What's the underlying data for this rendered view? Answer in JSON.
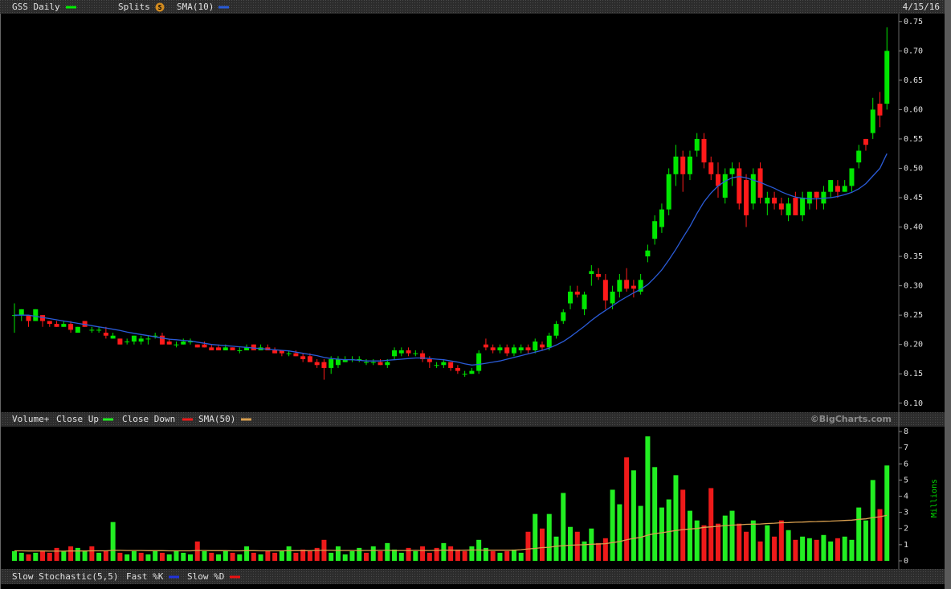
{
  "chart_data": [
    {
      "type": "candlestick",
      "name": "GSS Daily",
      "name_color": "#00ee00",
      "split_label": "Splits",
      "split_badge": "S",
      "date": "4/15/16",
      "up_color": "#00e600",
      "down_color": "#ff1a1a",
      "ylim": [
        0.086,
        0.762
      ],
      "yticks": [
        {
          "value": 0.1,
          "label": "0.10"
        },
        0.15,
        {
          "value": 0.2,
          "label": "0.20"
        },
        0.25,
        {
          "value": 0.3,
          "label": "0.30"
        },
        0.35,
        {
          "value": 0.4,
          "label": "0.40"
        },
        0.45,
        {
          "value": 0.5,
          "label": "0.50"
        },
        0.55,
        {
          "value": 0.6,
          "label": "0.60"
        },
        0.65,
        {
          "value": 0.7,
          "label": "0.70"
        },
        0.75
      ],
      "candles": [
        [
          0.25,
          0.27,
          0.22,
          0.25
        ],
        [
          0.25,
          0.26,
          0.24,
          0.26
        ],
        [
          0.25,
          0.25,
          0.23,
          0.24
        ],
        [
          0.24,
          0.26,
          0.24,
          0.26
        ],
        [
          0.25,
          0.25,
          0.23,
          0.24
        ],
        [
          0.24,
          0.24,
          0.23,
          0.235
        ],
        [
          0.235,
          0.24,
          0.23,
          0.23
        ],
        [
          0.23,
          0.24,
          0.23,
          0.235
        ],
        [
          0.235,
          0.24,
          0.22,
          0.225
        ],
        [
          0.22,
          0.23,
          0.22,
          0.23
        ],
        [
          0.24,
          0.24,
          0.23,
          0.23
        ],
        [
          0.225,
          0.23,
          0.22,
          0.225
        ],
        [
          0.225,
          0.23,
          0.22,
          0.225
        ],
        [
          0.22,
          0.23,
          0.21,
          0.215
        ],
        [
          0.21,
          0.22,
          0.21,
          0.215
        ],
        [
          0.21,
          0.21,
          0.2,
          0.2
        ],
        [
          0.205,
          0.21,
          0.2,
          0.205
        ],
        [
          0.205,
          0.215,
          0.2,
          0.215
        ],
        [
          0.205,
          0.215,
          0.2,
          0.21
        ],
        [
          0.21,
          0.215,
          0.2,
          0.21
        ],
        [
          0.215,
          0.22,
          0.21,
          0.215
        ],
        [
          0.215,
          0.22,
          0.2,
          0.2
        ],
        [
          0.205,
          0.21,
          0.2,
          0.2
        ],
        [
          0.2,
          0.205,
          0.195,
          0.2
        ],
        [
          0.2,
          0.21,
          0.2,
          0.205
        ],
        [
          0.205,
          0.21,
          0.2,
          0.205
        ],
        [
          0.2,
          0.2,
          0.195,
          0.195
        ],
        [
          0.2,
          0.205,
          0.195,
          0.195
        ],
        [
          0.195,
          0.2,
          0.19,
          0.19
        ],
        [
          0.195,
          0.2,
          0.19,
          0.19
        ],
        [
          0.19,
          0.2,
          0.19,
          0.195
        ],
        [
          0.195,
          0.195,
          0.19,
          0.19
        ],
        [
          0.19,
          0.195,
          0.185,
          0.19
        ],
        [
          0.19,
          0.2,
          0.19,
          0.195
        ],
        [
          0.2,
          0.2,
          0.19,
          0.19
        ],
        [
          0.19,
          0.2,
          0.19,
          0.195
        ],
        [
          0.195,
          0.2,
          0.19,
          0.19
        ],
        [
          0.19,
          0.195,
          0.185,
          0.185
        ],
        [
          0.19,
          0.19,
          0.18,
          0.185
        ],
        [
          0.185,
          0.19,
          0.18,
          0.185
        ],
        [
          0.185,
          0.19,
          0.18,
          0.18
        ],
        [
          0.18,
          0.185,
          0.17,
          0.175
        ],
        [
          0.18,
          0.185,
          0.17,
          0.17
        ],
        [
          0.17,
          0.175,
          0.16,
          0.165
        ],
        [
          0.17,
          0.175,
          0.14,
          0.16
        ],
        [
          0.16,
          0.18,
          0.15,
          0.175
        ],
        [
          0.165,
          0.18,
          0.16,
          0.175
        ],
        [
          0.17,
          0.18,
          0.17,
          0.175
        ],
        [
          0.175,
          0.18,
          0.17,
          0.175
        ],
        [
          0.175,
          0.18,
          0.17,
          0.175
        ],
        [
          0.17,
          0.175,
          0.165,
          0.17
        ],
        [
          0.17,
          0.175,
          0.165,
          0.17
        ],
        [
          0.17,
          0.175,
          0.165,
          0.165
        ],
        [
          0.165,
          0.175,
          0.16,
          0.17
        ],
        [
          0.18,
          0.195,
          0.175,
          0.19
        ],
        [
          0.185,
          0.195,
          0.18,
          0.19
        ],
        [
          0.19,
          0.195,
          0.18,
          0.185
        ],
        [
          0.185,
          0.19,
          0.18,
          0.185
        ],
        [
          0.185,
          0.19,
          0.17,
          0.175
        ],
        [
          0.175,
          0.18,
          0.16,
          0.17
        ],
        [
          0.165,
          0.17,
          0.16,
          0.165
        ],
        [
          0.165,
          0.175,
          0.16,
          0.17
        ],
        [
          0.17,
          0.17,
          0.155,
          0.16
        ],
        [
          0.16,
          0.165,
          0.15,
          0.155
        ],
        [
          0.15,
          0.155,
          0.145,
          0.15
        ],
        [
          0.15,
          0.16,
          0.15,
          0.155
        ],
        [
          0.155,
          0.19,
          0.15,
          0.185
        ],
        [
          0.2,
          0.21,
          0.19,
          0.195
        ],
        [
          0.195,
          0.2,
          0.185,
          0.19
        ],
        [
          0.19,
          0.2,
          0.185,
          0.195
        ],
        [
          0.195,
          0.2,
          0.18,
          0.185
        ],
        [
          0.185,
          0.2,
          0.18,
          0.195
        ],
        [
          0.19,
          0.2,
          0.185,
          0.195
        ],
        [
          0.195,
          0.2,
          0.185,
          0.19
        ],
        [
          0.19,
          0.21,
          0.185,
          0.205
        ],
        [
          0.2,
          0.205,
          0.19,
          0.195
        ],
        [
          0.195,
          0.22,
          0.19,
          0.215
        ],
        [
          0.215,
          0.24,
          0.21,
          0.235
        ],
        [
          0.24,
          0.26,
          0.235,
          0.255
        ],
        [
          0.27,
          0.3,
          0.26,
          0.29
        ],
        [
          0.29,
          0.3,
          0.28,
          0.285
        ],
        [
          0.26,
          0.29,
          0.25,
          0.285
        ],
        [
          0.32,
          0.335,
          0.3,
          0.325
        ],
        [
          0.32,
          0.33,
          0.31,
          0.315
        ],
        [
          0.31,
          0.32,
          0.26,
          0.275
        ],
        [
          0.27,
          0.3,
          0.26,
          0.29
        ],
        [
          0.29,
          0.32,
          0.28,
          0.31
        ],
        [
          0.31,
          0.33,
          0.29,
          0.295
        ],
        [
          0.3,
          0.31,
          0.28,
          0.295
        ],
        [
          0.29,
          0.32,
          0.285,
          0.31
        ],
        [
          0.35,
          0.37,
          0.34,
          0.36
        ],
        [
          0.38,
          0.42,
          0.37,
          0.41
        ],
        [
          0.4,
          0.44,
          0.39,
          0.43
        ],
        [
          0.43,
          0.5,
          0.42,
          0.49
        ],
        [
          0.49,
          0.54,
          0.47,
          0.52
        ],
        [
          0.52,
          0.53,
          0.46,
          0.49
        ],
        [
          0.49,
          0.53,
          0.48,
          0.52
        ],
        [
          0.53,
          0.56,
          0.52,
          0.55
        ],
        [
          0.55,
          0.56,
          0.5,
          0.51
        ],
        [
          0.51,
          0.52,
          0.48,
          0.49
        ],
        [
          0.49,
          0.51,
          0.45,
          0.47
        ],
        [
          0.45,
          0.5,
          0.44,
          0.49
        ],
        [
          0.49,
          0.51,
          0.47,
          0.5
        ],
        [
          0.5,
          0.51,
          0.43,
          0.44
        ],
        [
          0.48,
          0.49,
          0.4,
          0.42
        ],
        [
          0.44,
          0.5,
          0.43,
          0.49
        ],
        [
          0.5,
          0.51,
          0.44,
          0.45
        ],
        [
          0.44,
          0.46,
          0.42,
          0.45
        ],
        [
          0.45,
          0.46,
          0.43,
          0.44
        ],
        [
          0.44,
          0.45,
          0.42,
          0.43
        ],
        [
          0.42,
          0.45,
          0.41,
          0.44
        ],
        [
          0.45,
          0.46,
          0.42,
          0.42
        ],
        [
          0.42,
          0.46,
          0.41,
          0.45
        ],
        [
          0.44,
          0.46,
          0.43,
          0.46
        ],
        [
          0.46,
          0.46,
          0.43,
          0.45
        ],
        [
          0.44,
          0.47,
          0.43,
          0.46
        ],
        [
          0.46,
          0.48,
          0.45,
          0.48
        ],
        [
          0.47,
          0.48,
          0.45,
          0.46
        ],
        [
          0.46,
          0.48,
          0.46,
          0.47
        ],
        [
          0.47,
          0.5,
          0.46,
          0.5
        ],
        [
          0.51,
          0.54,
          0.5,
          0.53
        ],
        [
          0.55,
          0.55,
          0.53,
          0.54
        ],
        [
          0.56,
          0.62,
          0.55,
          0.6
        ],
        [
          0.61,
          0.63,
          0.57,
          0.59
        ],
        [
          0.61,
          0.74,
          0.6,
          0.7
        ]
      ],
      "series": [
        {
          "name": "SMA(10)",
          "color": "#2a5bd7",
          "values": [
            0.25,
            0.25,
            0.25,
            0.248,
            0.246,
            0.244,
            0.242,
            0.24,
            0.238,
            0.236,
            0.234,
            0.232,
            0.23,
            0.228,
            0.226,
            0.224,
            0.221,
            0.219,
            0.217,
            0.215,
            0.213,
            0.211,
            0.209,
            0.208,
            0.207,
            0.206,
            0.204,
            0.202,
            0.2,
            0.199,
            0.198,
            0.197,
            0.196,
            0.195,
            0.194,
            0.193,
            0.192,
            0.191,
            0.19,
            0.189,
            0.187,
            0.185,
            0.183,
            0.181,
            0.178,
            0.176,
            0.175,
            0.174,
            0.174,
            0.173,
            0.172,
            0.172,
            0.172,
            0.173,
            0.174,
            0.175,
            0.176,
            0.177,
            0.177,
            0.176,
            0.175,
            0.174,
            0.172,
            0.17,
            0.167,
            0.165,
            0.166,
            0.168,
            0.17,
            0.172,
            0.175,
            0.178,
            0.181,
            0.184,
            0.187,
            0.19,
            0.194,
            0.199,
            0.205,
            0.213,
            0.222,
            0.231,
            0.241,
            0.25,
            0.258,
            0.266,
            0.274,
            0.281,
            0.288,
            0.294,
            0.302,
            0.314,
            0.327,
            0.344,
            0.362,
            0.382,
            0.401,
            0.423,
            0.443,
            0.458,
            0.47,
            0.478,
            0.484,
            0.486,
            0.484,
            0.48,
            0.476,
            0.471,
            0.466,
            0.46,
            0.455,
            0.451,
            0.449,
            0.448,
            0.448,
            0.449,
            0.45,
            0.452,
            0.455,
            0.459,
            0.465,
            0.474,
            0.487,
            0.5,
            0.525
          ]
        }
      ]
    },
    {
      "type": "volume",
      "name": "Volume+",
      "up_label": "Close Up",
      "down_label": "Close Down",
      "up_color": "#22ee22",
      "down_color": "#ee1a1a",
      "watermark": "©BigCharts.com",
      "ylabel": "Millions",
      "ylim": [
        -0.25,
        8.3
      ],
      "yticks": [
        0,
        1,
        2,
        3,
        4,
        5,
        6,
        7,
        8
      ],
      "values": [
        0.6,
        0.5,
        0.4,
        0.5,
        0.6,
        0.5,
        0.8,
        0.6,
        0.9,
        0.8,
        0.6,
        0.9,
        0.5,
        0.6,
        2.4,
        0.5,
        0.4,
        0.6,
        0.5,
        0.4,
        0.6,
        0.5,
        0.4,
        0.6,
        0.5,
        0.4,
        1.2,
        0.6,
        0.5,
        0.4,
        0.6,
        0.5,
        0.4,
        0.9,
        0.5,
        0.4,
        0.6,
        0.5,
        0.6,
        0.9,
        0.5,
        0.7,
        0.6,
        0.8,
        1.3,
        0.5,
        0.9,
        0.4,
        0.6,
        0.8,
        0.5,
        0.9,
        0.6,
        1.1,
        0.7,
        0.5,
        0.8,
        0.6,
        0.9,
        0.5,
        0.8,
        1.1,
        0.9,
        0.7,
        0.6,
        0.9,
        1.3,
        0.8,
        0.6,
        0.5,
        0.6,
        0.7,
        0.5,
        1.8,
        2.9,
        2.0,
        2.9,
        1.5,
        4.2,
        2.1,
        1.8,
        1.2,
        2.0,
        1.1,
        1.4,
        4.4,
        3.5,
        6.4,
        5.6,
        3.4,
        7.7,
        5.8,
        3.3,
        3.8,
        5.3,
        4.4,
        3.1,
        2.5,
        2.2,
        4.5,
        2.3,
        2.8,
        3.1,
        2.3,
        1.8,
        2.5,
        1.2,
        2.2,
        1.5,
        2.5,
        1.9,
        1.3,
        1.5,
        1.4,
        1.3,
        1.6,
        1.2,
        1.4,
        1.5,
        1.3,
        3.3,
        2.5,
        5.0,
        3.2,
        5.9
      ],
      "series": [
        {
          "name": "SMA(50)",
          "color": "#d9a050",
          "values": [
            0.62,
            0.62,
            0.61,
            0.61,
            0.61,
            0.6,
            0.6,
            0.6,
            0.61,
            0.61,
            0.61,
            0.62,
            0.62,
            0.62,
            0.65,
            0.65,
            0.64,
            0.64,
            0.64,
            0.63,
            0.63,
            0.63,
            0.62,
            0.62,
            0.62,
            0.62,
            0.64,
            0.64,
            0.63,
            0.63,
            0.63,
            0.62,
            0.62,
            0.63,
            0.63,
            0.62,
            0.62,
            0.62,
            0.62,
            0.63,
            0.63,
            0.63,
            0.63,
            0.65,
            0.65,
            0.65,
            0.64,
            0.64,
            0.64,
            0.64,
            0.64,
            0.64,
            0.65,
            0.65,
            0.64,
            0.64,
            0.64,
            0.65,
            0.64,
            0.64,
            0.65,
            0.66,
            0.66,
            0.65,
            0.66,
            0.67,
            0.67,
            0.66,
            0.66,
            0.66,
            0.66,
            0.66,
            0.69,
            0.74,
            0.77,
            0.82,
            0.84,
            0.91,
            0.94,
            0.97,
            0.99,
            1.0,
            1.03,
            1.04,
            1.06,
            1.13,
            1.19,
            1.3,
            1.39,
            1.45,
            1.59,
            1.69,
            1.74,
            1.81,
            1.88,
            1.93,
            1.97,
            2.0,
            2.07,
            2.1,
            2.14,
            2.18,
            2.21,
            2.23,
            2.26,
            2.27,
            2.28,
            2.31,
            2.33,
            2.36,
            2.37,
            2.39,
            2.4,
            2.42,
            2.43,
            2.45,
            2.46,
            2.48,
            2.5,
            2.52,
            2.57,
            2.6,
            2.68,
            2.73,
            2.82
          ]
        }
      ]
    },
    {
      "type": "stochastic",
      "name": "Slow Stochastic(5,5)",
      "legend": [
        {
          "name": "Fast %K",
          "color": "#2233dd"
        },
        {
          "name": "Slow %D",
          "color": "#ee1111"
        }
      ]
    }
  ]
}
